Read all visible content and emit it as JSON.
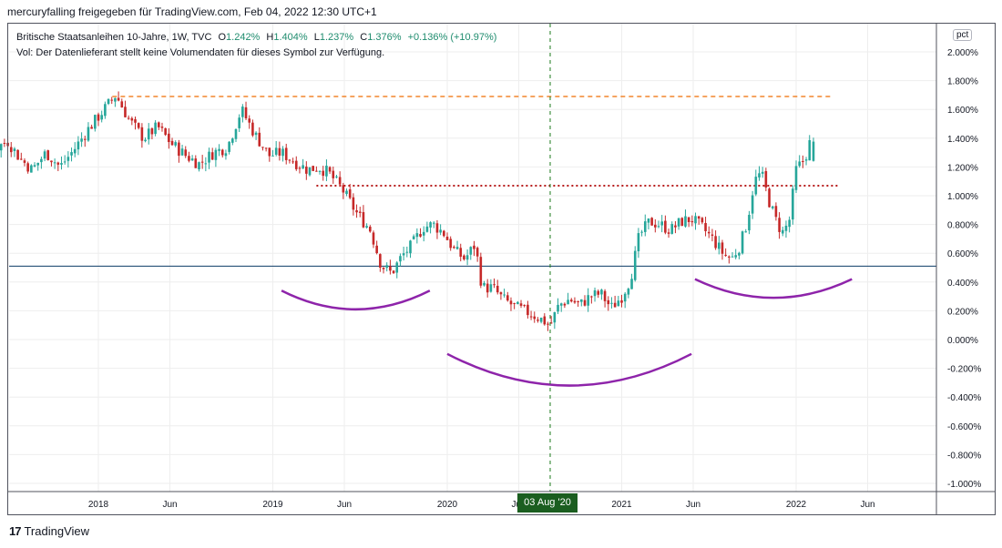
{
  "header": {
    "title": "mercuryfalling freigegeben für TradingView.com, Feb 04, 2022 12:30 UTC+1"
  },
  "legend": {
    "symbol": "Britische Staatsanleihen 10-Jahre, 1W, TVC",
    "o_label": "O",
    "o_value": "1.242%",
    "h_label": "H",
    "h_value": "1.404%",
    "l_label": "L",
    "l_value": "1.237%",
    "c_label": "C",
    "c_value": "1.376%",
    "change": "+0.136% (+10.97%)",
    "volume_note": "Vol: Der Datenlieferant stellt keine Volumendaten für dieses Symbol zur Verfügung."
  },
  "axis_unit": "pct",
  "crosshair_date": "03 Aug '20",
  "footer": {
    "logo_mark": "17",
    "brand": "TradingView"
  },
  "colors": {
    "up": "#26a69a",
    "down": "#c62828",
    "arc": "#8e24aa",
    "dotted_level": "#b71c1c",
    "dashed_level": "#ef6c00",
    "baseline": "#0d3b66",
    "crosshair": "#1b7a1b",
    "grid": "#eeeeee"
  },
  "chart_data": {
    "type": "candlestick",
    "timeframe": "1W",
    "y_axis": {
      "ticks": [
        "2.000%",
        "1.800%",
        "1.600%",
        "1.400%",
        "1.200%",
        "1.000%",
        "0.800%",
        "0.600%",
        "0.400%",
        "0.200%",
        "0.000%",
        "-0.200%",
        "-0.400%",
        "-0.600%",
        "-0.800%",
        "-1.000%"
      ],
      "ylim": [
        -1.0,
        2.0
      ]
    },
    "x_axis": {
      "ticks": [
        "2018",
        "Jun",
        "2019",
        "Jun",
        "2020",
        "Jun",
        "2021",
        "Jun",
        "2022",
        "Jun"
      ],
      "range": [
        2017.0,
        2022.5
      ]
    },
    "price_path": [
      [
        2017.0,
        1.28
      ],
      [
        2017.06,
        1.24
      ],
      [
        2017.12,
        1.08
      ],
      [
        2017.18,
        0.98
      ],
      [
        2017.25,
        1.26
      ],
      [
        2017.32,
        1.4
      ],
      [
        2017.4,
        1.32
      ],
      [
        2017.48,
        1.38
      ],
      [
        2017.55,
        1.26
      ],
      [
        2017.62,
        1.18
      ],
      [
        2017.7,
        1.3
      ],
      [
        2017.78,
        1.2
      ],
      [
        2017.86,
        1.32
      ],
      [
        2017.94,
        1.46
      ],
      [
        2018.02,
        1.58
      ],
      [
        2018.1,
        1.7
      ],
      [
        2018.18,
        1.52
      ],
      [
        2018.26,
        1.4
      ],
      [
        2018.34,
        1.48
      ],
      [
        2018.42,
        1.36
      ],
      [
        2018.5,
        1.28
      ],
      [
        2018.58,
        1.22
      ],
      [
        2018.66,
        1.3
      ],
      [
        2018.74,
        1.34
      ],
      [
        2018.82,
        1.6
      ],
      [
        2018.9,
        1.42
      ],
      [
        2018.98,
        1.28
      ],
      [
        2019.05,
        1.3
      ],
      [
        2019.12,
        1.24
      ],
      [
        2019.2,
        1.18
      ],
      [
        2019.26,
        1.2
      ],
      [
        2019.32,
        1.16
      ],
      [
        2019.4,
        1.04
      ],
      [
        2019.48,
        0.88
      ],
      [
        2019.56,
        0.76
      ],
      [
        2019.62,
        0.52
      ],
      [
        2019.68,
        0.46
      ],
      [
        2019.74,
        0.58
      ],
      [
        2019.8,
        0.66
      ],
      [
        2019.86,
        0.78
      ],
      [
        2019.92,
        0.8
      ],
      [
        2019.98,
        0.74
      ],
      [
        2020.04,
        0.62
      ],
      [
        2020.1,
        0.56
      ],
      [
        2020.16,
        0.66
      ],
      [
        2020.2,
        0.36
      ],
      [
        2020.26,
        0.36
      ],
      [
        2020.32,
        0.28
      ],
      [
        2020.4,
        0.22
      ],
      [
        2020.48,
        0.18
      ],
      [
        2020.54,
        0.14
      ],
      [
        2020.59,
        0.1
      ],
      [
        2020.64,
        0.24
      ],
      [
        2020.7,
        0.28
      ],
      [
        2020.76,
        0.24
      ],
      [
        2020.82,
        0.3
      ],
      [
        2020.88,
        0.32
      ],
      [
        2020.94,
        0.22
      ],
      [
        2021.0,
        0.3
      ],
      [
        2021.05,
        0.42
      ],
      [
        2021.1,
        0.72
      ],
      [
        2021.16,
        0.82
      ],
      [
        2021.22,
        0.8
      ],
      [
        2021.28,
        0.76
      ],
      [
        2021.34,
        0.82
      ],
      [
        2021.4,
        0.84
      ],
      [
        2021.46,
        0.78
      ],
      [
        2021.52,
        0.7
      ],
      [
        2021.58,
        0.6
      ],
      [
        2021.63,
        0.56
      ],
      [
        2021.68,
        0.66
      ],
      [
        2021.72,
        0.82
      ],
      [
        2021.76,
        1.1
      ],
      [
        2021.8,
        1.16
      ],
      [
        2021.84,
        0.98
      ],
      [
        2021.88,
        0.84
      ],
      [
        2021.92,
        0.74
      ],
      [
        2021.96,
        0.82
      ],
      [
        2022.0,
        1.18
      ],
      [
        2022.05,
        1.26
      ],
      [
        2022.08,
        1.376
      ]
    ],
    "annotations": [
      {
        "type": "horizontal_dashed",
        "y": 1.69,
        "x_start": 2018.08,
        "x_end": 2022.2
      },
      {
        "type": "horizontal_dotted",
        "y": 1.07,
        "x_start": 2019.25,
        "x_end": 2022.24
      },
      {
        "type": "horizontal_line",
        "y": 0.51
      },
      {
        "type": "arc",
        "x_start": 2019.05,
        "x_end": 2019.9,
        "y_edge": 0.34,
        "y_low": 0.21
      },
      {
        "type": "arc",
        "x_start": 2020.0,
        "x_end": 2021.4,
        "y_edge": -0.1,
        "y_low": -0.32
      },
      {
        "type": "arc",
        "x_start": 2021.42,
        "x_end": 2022.32,
        "y_edge": 0.42,
        "y_low": 0.29
      },
      {
        "type": "vertical_crosshair",
        "x": 2020.59
      }
    ]
  }
}
